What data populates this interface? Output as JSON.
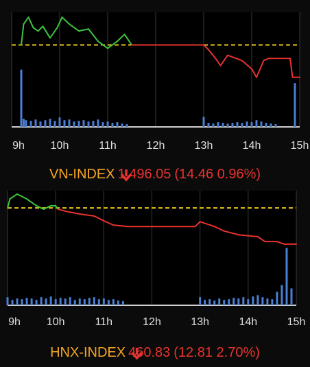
{
  "chart_data": [
    {
      "type": "line",
      "index_name": "VN-INDEX",
      "index_value": "1.496.05",
      "change_text": "(14.46 0.96%)",
      "name_color": "#f5a623",
      "down_color": "#e8332e",
      "up_color": "#3ec63e",
      "reference": 1510.51,
      "reference_color": "#e6c619",
      "x": [
        9.2,
        9.25,
        9.35,
        9.45,
        9.55,
        9.65,
        9.8,
        9.95,
        10.05,
        10.2,
        10.4,
        10.6,
        10.8,
        11.0,
        11.2,
        11.35,
        11.5,
        13.0,
        13.1,
        13.25,
        13.35,
        13.5,
        13.8,
        14.0,
        14.1,
        14.25,
        14.35,
        14.8,
        14.85,
        15.0
      ],
      "values": [
        1510.5,
        1519.8,
        1522.8,
        1518.2,
        1516.7,
        1518.8,
        1513.6,
        1518.2,
        1522.8,
        1519.8,
        1516.7,
        1517.6,
        1512.1,
        1509.0,
        1512.1,
        1515.2,
        1510.5,
        1510.5,
        1508.4,
        1504.4,
        1501.3,
        1505.9,
        1503.5,
        1499.8,
        1496.1,
        1503.5,
        1504.5,
        1504.5,
        1496.1,
        1496.1
      ],
      "xlim": [
        9,
        15
      ],
      "ylim": [
        1474,
        1525
      ],
      "xticks": [
        {
          "value": 9,
          "label": "9h"
        },
        {
          "value": 10,
          "label": "10h"
        },
        {
          "value": 11,
          "label": "11h"
        },
        {
          "value": 12,
          "label": "12h"
        },
        {
          "value": 13,
          "label": "13h"
        },
        {
          "value": 14,
          "label": "14h"
        },
        {
          "value": 15,
          "label": "15h"
        }
      ],
      "volume": {
        "color": "#4a7fd4",
        "lim": [
          0,
          170
        ],
        "x": [
          9.2,
          9.25,
          9.3,
          9.4,
          9.5,
          9.6,
          9.7,
          9.8,
          9.9,
          10.0,
          10.1,
          10.2,
          10.3,
          10.4,
          10.5,
          10.6,
          10.7,
          10.8,
          10.9,
          11.0,
          11.1,
          11.2,
          11.3,
          11.4,
          13.0,
          13.1,
          13.2,
          13.3,
          13.4,
          13.5,
          13.6,
          13.7,
          13.8,
          13.9,
          14.0,
          14.1,
          14.2,
          14.3,
          14.4,
          14.5,
          14.9
        ],
        "values": [
          85,
          12,
          10,
          9,
          11,
          8,
          10,
          12,
          9,
          14,
          10,
          11,
          8,
          9,
          10,
          8,
          9,
          11,
          7,
          8,
          6,
          7,
          5,
          4,
          15,
          6,
          5,
          7,
          6,
          5,
          6,
          7,
          6,
          8,
          7,
          10,
          8,
          6,
          5,
          4,
          65
        ]
      }
    },
    {
      "type": "line",
      "index_name": "HNX-INDEX",
      "index_value": "460.83",
      "change_text": "(12.81 2.70%)",
      "name_color": "#f5a623",
      "down_color": "#e8332e",
      "up_color": "#3ec63e",
      "reference": 473.64,
      "reference_color": "#e6c619",
      "x": [
        9.0,
        9.05,
        9.2,
        9.4,
        9.6,
        9.75,
        9.9,
        10.0,
        10.05,
        10.2,
        10.5,
        10.8,
        11.0,
        11.2,
        11.5,
        12.9,
        13.0,
        13.3,
        13.5,
        13.8,
        14.2,
        14.35,
        14.6,
        14.75,
        15.0
      ],
      "values": [
        473.6,
        476.8,
        478.5,
        476.8,
        474.4,
        473.2,
        474.4,
        474.4,
        473.2,
        472.5,
        471.5,
        470.8,
        469.1,
        467.6,
        467.1,
        467.1,
        468.8,
        467.1,
        465.5,
        464.2,
        463.5,
        461.8,
        461.8,
        460.9,
        460.9
      ],
      "xlim": [
        9,
        15
      ],
      "ylim": [
        439.4,
        479.7
      ],
      "xticks": [
        {
          "value": 9,
          "label": "9h"
        },
        {
          "value": 10,
          "label": "10h"
        },
        {
          "value": 11,
          "label": "11h"
        },
        {
          "value": 12,
          "label": "12h"
        },
        {
          "value": 13,
          "label": "13h"
        },
        {
          "value": 14,
          "label": "14h"
        },
        {
          "value": 15,
          "label": "15h"
        }
      ],
      "volume": {
        "color": "#4a7fd4",
        "lim": [
          0,
          170
        ],
        "x": [
          9.0,
          9.1,
          9.2,
          9.3,
          9.4,
          9.5,
          9.6,
          9.7,
          9.8,
          9.9,
          10.0,
          10.1,
          10.2,
          10.3,
          10.4,
          10.5,
          10.6,
          10.7,
          10.8,
          10.9,
          11.0,
          11.1,
          11.2,
          11.3,
          11.4,
          13.0,
          13.1,
          13.2,
          13.3,
          13.4,
          13.5,
          13.6,
          13.7,
          13.8,
          13.9,
          14.0,
          14.1,
          14.2,
          14.3,
          14.4,
          14.5,
          14.6,
          14.7,
          14.8,
          14.9
        ],
        "values": [
          12,
          8,
          10,
          9,
          11,
          10,
          8,
          12,
          10,
          13,
          9,
          11,
          10,
          12,
          8,
          10,
          9,
          11,
          12,
          9,
          10,
          8,
          9,
          7,
          6,
          12,
          8,
          9,
          7,
          10,
          8,
          9,
          11,
          10,
          12,
          9,
          13,
          15,
          12,
          10,
          9,
          20,
          30,
          85,
          25
        ]
      }
    }
  ]
}
